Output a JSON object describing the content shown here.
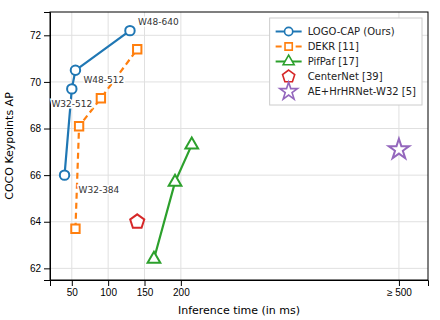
{
  "chart_data": {
    "type": "line",
    "x_label": "Inference time (in ms)",
    "y_label": "COCO Keypoints AP",
    "xlim": [
      20,
      540
    ],
    "ylim": [
      61.5,
      73
    ],
    "xticks": [
      50,
      100,
      150,
      200,
      {
        "value": 500,
        "label": "≥ 500"
      }
    ],
    "yticks": [
      62,
      64,
      66,
      68,
      70,
      72
    ],
    "grid": true,
    "legend": "upper right",
    "series": [
      {
        "name": "LOGO-CAP (Ours)",
        "type": "line",
        "color": "#1f77b4",
        "marker": "circle",
        "line_style": "solid",
        "x": [
          40,
          50,
          55,
          130
        ],
        "values": [
          66.0,
          69.7,
          70.5,
          72.2
        ]
      },
      {
        "name": "DEKR [11]",
        "type": "line",
        "color": "#ff7f0e",
        "marker": "square",
        "line_style": "dashed",
        "x": [
          55,
          60,
          90,
          140
        ],
        "values": [
          63.7,
          68.1,
          69.3,
          71.4
        ]
      },
      {
        "name": "PifPaf [17]",
        "type": "line",
        "color": "#2ca02c",
        "marker": "triangle",
        "line_style": "solid",
        "x": [
          163,
          192,
          215
        ],
        "values": [
          62.4,
          65.7,
          67.3
        ]
      },
      {
        "name": "CenterNet [39]",
        "type": "scatter",
        "color": "#d62728",
        "marker": "pentagon",
        "line_style": "none",
        "x": [
          140
        ],
        "values": [
          64.0
        ]
      },
      {
        "name": "AE+HrHRNet-W32 [5]",
        "type": "scatter",
        "color": "#9467bd",
        "marker": "star",
        "line_style": "none",
        "x": [
          500
        ],
        "values": [
          67.1
        ]
      }
    ],
    "annotations": [
      {
        "text": "W32-384",
        "x": 40,
        "y": 66.0
      },
      {
        "text": "W48-512",
        "x": 55,
        "y": 70.5
      },
      {
        "text": "W32-512",
        "x": 50,
        "y": 69.7
      },
      {
        "text": "W48-640",
        "x": 130,
        "y": 72.2
      }
    ]
  }
}
